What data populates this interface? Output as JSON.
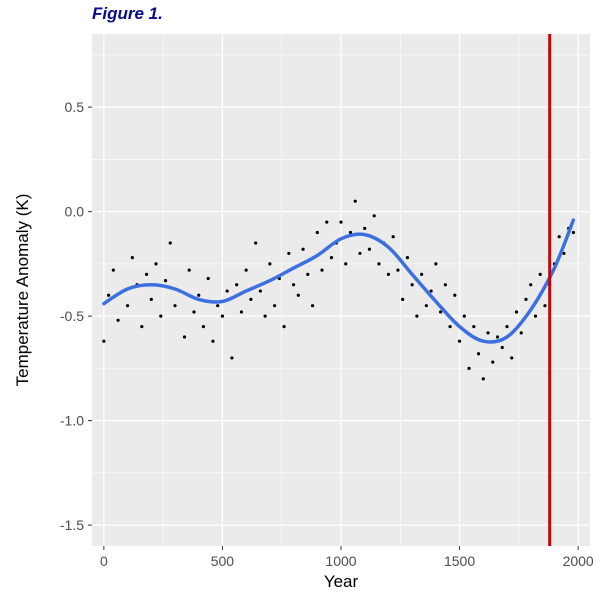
{
  "figure_label": "Figure 1.",
  "chart_data": {
    "type": "scatter",
    "title": "",
    "xlabel": "Year",
    "ylabel": "Temperature Anomaly (K)",
    "xlim": [
      -50,
      2050
    ],
    "ylim": [
      -1.6,
      0.85
    ],
    "x_ticks": [
      0,
      500,
      1000,
      1500,
      2000
    ],
    "y_ticks": [
      -1.5,
      -1.0,
      -0.5,
      0.0,
      0.5
    ],
    "x_tick_labels": [
      "0",
      "500",
      "1000",
      "1500",
      "2000"
    ],
    "y_tick_labels": [
      "-1.5",
      "-1.0",
      "-0.5",
      "0.0",
      "0.5"
    ],
    "grid": true,
    "legend": "none",
    "background_color": "#ebebeb",
    "grid_color": "#ffffff",
    "point_color": "#000000",
    "series": [
      {
        "kind": "points",
        "x": [
          0,
          20,
          40,
          60,
          80,
          100,
          120,
          140,
          160,
          180,
          200,
          220,
          240,
          260,
          280,
          300,
          320,
          340,
          360,
          380,
          400,
          420,
          440,
          460,
          480,
          500,
          520,
          540,
          560,
          580,
          600,
          620,
          640,
          660,
          680,
          700,
          720,
          740,
          760,
          780,
          800,
          820,
          840,
          860,
          880,
          900,
          920,
          940,
          960,
          980,
          1000,
          1020,
          1040,
          1060,
          1080,
          1100,
          1120,
          1140,
          1160,
          1180,
          1200,
          1220,
          1240,
          1260,
          1280,
          1300,
          1320,
          1340,
          1360,
          1380,
          1400,
          1420,
          1440,
          1460,
          1480,
          1500,
          1520,
          1540,
          1560,
          1580,
          1600,
          1620,
          1640,
          1660,
          1680,
          1700,
          1720,
          1740,
          1760,
          1780,
          1800,
          1820,
          1840,
          1860,
          1880,
          1900,
          1920,
          1940,
          1960,
          1980
        ],
        "y": [
          -0.62,
          -0.4,
          -0.28,
          -0.52,
          -0.38,
          -0.45,
          -0.22,
          -0.35,
          -0.55,
          -0.3,
          -0.42,
          -0.25,
          -0.5,
          -0.33,
          -0.15,
          -0.45,
          -0.38,
          -0.6,
          -0.28,
          -0.48,
          -0.4,
          -0.55,
          -0.32,
          -0.62,
          -0.45,
          -0.5,
          -0.38,
          -0.7,
          -0.35,
          -0.48,
          -0.28,
          -0.42,
          -0.15,
          -0.38,
          -0.5,
          -0.25,
          -0.45,
          -0.32,
          -0.55,
          -0.2,
          -0.35,
          -0.4,
          -0.18,
          -0.3,
          -0.45,
          -0.1,
          -0.28,
          -0.05,
          -0.22,
          -0.15,
          -0.05,
          -0.25,
          -0.1,
          0.05,
          -0.2,
          -0.08,
          -0.18,
          -0.02,
          -0.25,
          -0.15,
          -0.3,
          -0.12,
          -0.28,
          -0.42,
          -0.22,
          -0.35,
          -0.5,
          -0.3,
          -0.45,
          -0.38,
          -0.25,
          -0.48,
          -0.35,
          -0.55,
          -0.4,
          -0.62,
          -0.5,
          -0.75,
          -0.55,
          -0.68,
          -0.8,
          -0.58,
          -0.72,
          -0.6,
          -0.65,
          -0.55,
          -0.7,
          -0.48,
          -0.58,
          -0.42,
          -0.35,
          -0.5,
          -0.3,
          -0.45,
          -0.35,
          -0.25,
          -0.12,
          -0.2,
          -0.08,
          -0.1
        ]
      },
      {
        "kind": "smooth",
        "color": "#3d6fe0",
        "x": [
          0,
          100,
          200,
          300,
          400,
          500,
          600,
          700,
          800,
          900,
          1000,
          1100,
          1200,
          1300,
          1400,
          1500,
          1600,
          1700,
          1800,
          1900,
          1980
        ],
        "y": [
          -0.44,
          -0.37,
          -0.35,
          -0.37,
          -0.42,
          -0.43,
          -0.38,
          -0.33,
          -0.27,
          -0.21,
          -0.13,
          -0.11,
          -0.17,
          -0.3,
          -0.43,
          -0.55,
          -0.62,
          -0.6,
          -0.47,
          -0.27,
          -0.04
        ]
      },
      {
        "kind": "vline",
        "color": "#d00000",
        "x": 1880
      }
    ]
  }
}
